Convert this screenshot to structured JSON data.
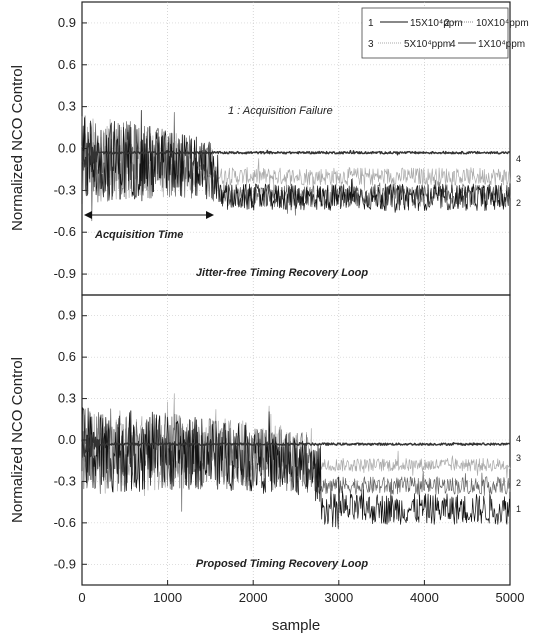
{
  "chart_data": [
    {
      "type": "line",
      "panel": "top",
      "ylabel": "Normalized NCO Control",
      "xlabel": "",
      "xlim": [
        0,
        5000
      ],
      "ylim": [
        -1.05,
        1.05
      ],
      "yticks": [
        "0.9",
        "0.6",
        "0.3",
        "0.0",
        "-0.3",
        "-0.6",
        "-0.9"
      ],
      "grid": true,
      "legend_placement": "top-right",
      "legend": [
        {
          "num": "1",
          "label": "15X10⁴ppm",
          "color": "#111111"
        },
        {
          "num": "2",
          "label": "10X10⁴ppm",
          "color": "#666666"
        },
        {
          "num": "3",
          "label": "5X10⁴ppm",
          "color": "#aaaaaa"
        },
        {
          "num": "4",
          "label": "1X10⁴ppm",
          "color": "#333333"
        }
      ],
      "annotations": {
        "failure": "1 : Acquisition Failure",
        "acq_time": "Acquisition Time",
        "title": "Jitter-free Timing Recovery Loop"
      },
      "end_labels": [
        "4",
        "3",
        "2"
      ],
      "series": [
        {
          "name": "1",
          "settle_x": 1600,
          "final_level": -0.35,
          "noise": 0.06,
          "color": "#111111"
        },
        {
          "name": "2",
          "settle_x": 1600,
          "final_level": -0.34,
          "noise": 0.05,
          "color": "#666666"
        },
        {
          "name": "3",
          "settle_x": 1300,
          "final_level": -0.2,
          "noise": 0.04,
          "color": "#aaaaaa"
        },
        {
          "name": "4",
          "settle_x": 200,
          "final_level": -0.03,
          "noise": 0.005,
          "color": "#333333"
        }
      ]
    },
    {
      "type": "line",
      "panel": "bottom",
      "ylabel": "Normalized NCO Control",
      "xlabel": "sample",
      "xlim": [
        0,
        5000
      ],
      "ylim": [
        -1.05,
        1.05
      ],
      "xticks": [
        "0",
        "1000",
        "2000",
        "3000",
        "4000",
        "5000"
      ],
      "yticks": [
        "0.9",
        "0.6",
        "0.3",
        "0.0",
        "-0.3",
        "-0.6",
        "-0.9"
      ],
      "grid": true,
      "annotations": {
        "title": "Proposed Timing Recovery Loop"
      },
      "end_labels": [
        "4",
        "3",
        "2",
        "1"
      ],
      "series": [
        {
          "name": "1",
          "settle_x": 2800,
          "final_level": -0.5,
          "noise": 0.07,
          "color": "#111111"
        },
        {
          "name": "2",
          "settle_x": 2750,
          "final_level": -0.33,
          "noise": 0.04,
          "color": "#666666"
        },
        {
          "name": "3",
          "settle_x": 2700,
          "final_level": -0.18,
          "noise": 0.03,
          "color": "#aaaaaa"
        },
        {
          "name": "4",
          "settle_x": 200,
          "final_level": -0.03,
          "noise": 0.005,
          "color": "#333333"
        }
      ]
    }
  ]
}
